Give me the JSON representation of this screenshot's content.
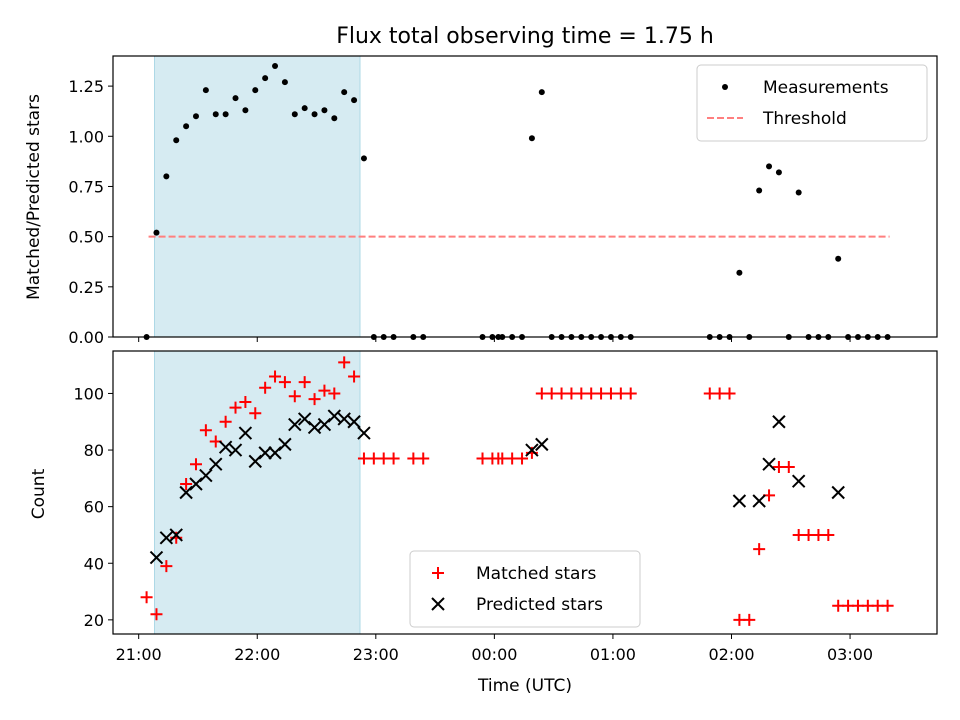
{
  "chart_data": [
    {
      "type": "scatter",
      "title": "Flux total observing time = 1.75 h",
      "ylabel": "Matched/Predicted stars",
      "xlabel": "",
      "ylim": [
        0,
        1.4
      ],
      "yticks": [
        0.0,
        0.25,
        0.5,
        0.75,
        1.0,
        1.25
      ],
      "ytick_labels": [
        "0.00",
        "0.25",
        "0.50",
        "0.75",
        "1.00",
        "1.25"
      ],
      "legend_position": "top-right",
      "shaded_interval": [
        "21:08",
        "22:52"
      ],
      "threshold": {
        "name": "Threshold",
        "value": 0.5,
        "x_range": [
          "21:05",
          "03:20"
        ],
        "color": "#ff7f7f",
        "style": "dashed"
      },
      "series": [
        {
          "name": "Measurements",
          "marker": "dot",
          "color": "#000000",
          "points": [
            [
              "21:04",
              0
            ],
            [
              "21:09",
              0.52
            ],
            [
              "21:14",
              0.8
            ],
            [
              "21:19",
              0.98
            ],
            [
              "21:24",
              1.05
            ],
            [
              "21:29",
              1.1
            ],
            [
              "21:34",
              1.23
            ],
            [
              "21:39",
              1.11
            ],
            [
              "21:44",
              1.11
            ],
            [
              "21:49",
              1.19
            ],
            [
              "21:54",
              1.13
            ],
            [
              "21:59",
              1.23
            ],
            [
              "22:04",
              1.29
            ],
            [
              "22:09",
              1.35
            ],
            [
              "22:14",
              1.27
            ],
            [
              "22:19",
              1.11
            ],
            [
              "22:24",
              1.14
            ],
            [
              "22:29",
              1.11
            ],
            [
              "22:34",
              1.13
            ],
            [
              "22:39",
              1.09
            ],
            [
              "22:44",
              1.22
            ],
            [
              "22:49",
              1.18
            ],
            [
              "22:54",
              0.89
            ],
            [
              "22:59",
              0
            ],
            [
              "23:04",
              0
            ],
            [
              "23:09",
              0
            ],
            [
              "23:19",
              0
            ],
            [
              "23:24",
              0
            ],
            [
              "23:54",
              0
            ],
            [
              "23:59",
              0
            ],
            [
              "00:02",
              0
            ],
            [
              "00:04",
              0
            ],
            [
              "00:09",
              0
            ],
            [
              "00:14",
              0
            ],
            [
              "00:19",
              0.99
            ],
            [
              "00:24",
              1.22
            ],
            [
              "00:29",
              0
            ],
            [
              "00:34",
              0
            ],
            [
              "00:39",
              0
            ],
            [
              "00:44",
              0
            ],
            [
              "00:49",
              0
            ],
            [
              "00:54",
              0
            ],
            [
              "00:59",
              0
            ],
            [
              "01:04",
              0
            ],
            [
              "01:09",
              0
            ],
            [
              "01:49",
              0
            ],
            [
              "01:54",
              0
            ],
            [
              "01:59",
              0
            ],
            [
              "02:04",
              0.32
            ],
            [
              "02:09",
              0
            ],
            [
              "02:14",
              0.73
            ],
            [
              "02:19",
              0.85
            ],
            [
              "02:24",
              0.82
            ],
            [
              "02:29",
              0
            ],
            [
              "02:34",
              0.72
            ],
            [
              "02:39",
              0
            ],
            [
              "02:44",
              0
            ],
            [
              "02:49",
              0
            ],
            [
              "02:54",
              0.39
            ],
            [
              "02:59",
              0
            ],
            [
              "03:04",
              0
            ],
            [
              "03:09",
              0
            ],
            [
              "03:14",
              0
            ],
            [
              "03:19",
              0
            ]
          ]
        }
      ]
    },
    {
      "type": "scatter",
      "title": "",
      "ylabel": "Count",
      "xlabel": "Time (UTC)",
      "ylim": [
        15,
        115
      ],
      "yticks": [
        20,
        40,
        60,
        80,
        100
      ],
      "ytick_labels": [
        "20",
        "40",
        "60",
        "80",
        "100"
      ],
      "xticks": [
        "21:00",
        "22:00",
        "23:00",
        "00:00",
        "01:00",
        "02:00",
        "03:00"
      ],
      "legend_position": "bottom-center",
      "shaded_interval": [
        "21:08",
        "22:52"
      ],
      "series": [
        {
          "name": "Matched stars",
          "marker": "plus",
          "color": "#ff0000",
          "points": [
            [
              "21:04",
              28
            ],
            [
              "21:09",
              22
            ],
            [
              "21:14",
              39
            ],
            [
              "21:19",
              49
            ],
            [
              "21:24",
              68
            ],
            [
              "21:29",
              75
            ],
            [
              "21:34",
              87
            ],
            [
              "21:39",
              83
            ],
            [
              "21:44",
              90
            ],
            [
              "21:49",
              95
            ],
            [
              "21:54",
              97
            ],
            [
              "21:59",
              93
            ],
            [
              "22:04",
              102
            ],
            [
              "22:09",
              106
            ],
            [
              "22:14",
              104
            ],
            [
              "22:19",
              99
            ],
            [
              "22:24",
              104
            ],
            [
              "22:29",
              98
            ],
            [
              "22:34",
              101
            ],
            [
              "22:39",
              100
            ],
            [
              "22:44",
              111
            ],
            [
              "22:49",
              106
            ],
            [
              "22:54",
              77
            ],
            [
              "22:59",
              77
            ],
            [
              "23:04",
              77
            ],
            [
              "23:09",
              77
            ],
            [
              "23:19",
              77
            ],
            [
              "23:24",
              77
            ],
            [
              "23:54",
              77
            ],
            [
              "23:59",
              77
            ],
            [
              "00:02",
              77
            ],
            [
              "00:04",
              77
            ],
            [
              "00:09",
              77
            ],
            [
              "00:14",
              77
            ],
            [
              "00:19",
              79
            ],
            [
              "00:24",
              100
            ],
            [
              "00:29",
              100
            ],
            [
              "00:34",
              100
            ],
            [
              "00:39",
              100
            ],
            [
              "00:44",
              100
            ],
            [
              "00:49",
              100
            ],
            [
              "00:54",
              100
            ],
            [
              "00:59",
              100
            ],
            [
              "01:04",
              100
            ],
            [
              "01:09",
              100
            ],
            [
              "01:49",
              100
            ],
            [
              "01:54",
              100
            ],
            [
              "01:59",
              100
            ],
            [
              "02:04",
              20
            ],
            [
              "02:09",
              20
            ],
            [
              "02:14",
              45
            ],
            [
              "02:19",
              64
            ],
            [
              "02:24",
              74
            ],
            [
              "02:29",
              74
            ],
            [
              "02:34",
              50
            ],
            [
              "02:39",
              50
            ],
            [
              "02:44",
              50
            ],
            [
              "02:49",
              50
            ],
            [
              "02:54",
              25
            ],
            [
              "02:59",
              25
            ],
            [
              "03:04",
              25
            ],
            [
              "03:09",
              25
            ],
            [
              "03:14",
              25
            ],
            [
              "03:19",
              25
            ]
          ]
        },
        {
          "name": "Predicted stars",
          "marker": "x",
          "color": "#000000",
          "points": [
            [
              "21:09",
              42
            ],
            [
              "21:14",
              49
            ],
            [
              "21:19",
              50
            ],
            [
              "21:24",
              65
            ],
            [
              "21:29",
              68
            ],
            [
              "21:34",
              71
            ],
            [
              "21:39",
              75
            ],
            [
              "21:44",
              81
            ],
            [
              "21:49",
              80
            ],
            [
              "21:54",
              86
            ],
            [
              "21:59",
              76
            ],
            [
              "22:04",
              79
            ],
            [
              "22:09",
              79
            ],
            [
              "22:14",
              82
            ],
            [
              "22:19",
              89
            ],
            [
              "22:24",
              91
            ],
            [
              "22:29",
              88
            ],
            [
              "22:34",
              89
            ],
            [
              "22:39",
              92
            ],
            [
              "22:44",
              91
            ],
            [
              "22:49",
              90
            ],
            [
              "22:54",
              86
            ],
            [
              "00:19",
              80
            ],
            [
              "00:24",
              82
            ],
            [
              "02:04",
              62
            ],
            [
              "02:14",
              62
            ],
            [
              "02:19",
              75
            ],
            [
              "02:24",
              90
            ],
            [
              "02:34",
              69
            ],
            [
              "02:54",
              65
            ]
          ]
        }
      ]
    }
  ]
}
